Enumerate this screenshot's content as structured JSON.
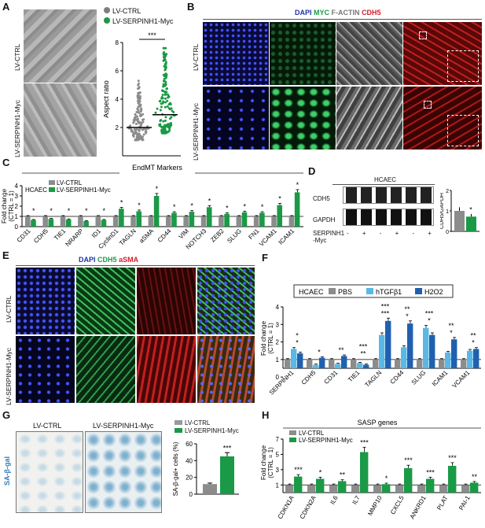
{
  "panels": {
    "A": {
      "letter": "A",
      "row_labels": [
        "LV-CTRL",
        "LV-SERPINH1-Myc"
      ],
      "legend": [
        "LV-CTRL",
        "LV-SERPINH1-Myc"
      ],
      "ylabel": "Aspect ratio",
      "yticks": [
        "2",
        "4",
        "6",
        "8"
      ],
      "sig": "***",
      "colors": {
        "ctrl": "#7f7f7f",
        "myc": "#1a9a46"
      }
    },
    "B": {
      "letter": "B",
      "channels": [
        {
          "name": "DAPI",
          "color": "#2233aa"
        },
        {
          "name": "MYC",
          "color": "#1a9a46"
        },
        {
          "name": "F-ACTIN",
          "color": "#777777"
        },
        {
          "name": "CDH5",
          "color": "#d0202a"
        }
      ],
      "row_labels": [
        "LV-CTRL",
        "LV-SERPINH1-Myc"
      ]
    },
    "C": {
      "letter": "C",
      "title": "EndMT Markers",
      "cell": "HCAEC",
      "legend": [
        "LV-CTRL",
        "LV-SERPINH1-Myc"
      ],
      "ylabel": "Fold change\n(CTRL = 1)"
    },
    "D": {
      "letter": "D",
      "cell": "HCAEC",
      "rows": [
        "CDH5",
        "GAPDH"
      ],
      "treatment": "SERPINH1\n-Myc",
      "signs": [
        "-",
        "+",
        "-",
        "+",
        "-",
        "+"
      ],
      "ylabel": "CDH5/GAPDH",
      "sig": "*"
    },
    "E": {
      "letter": "E",
      "channels": [
        {
          "name": "DAPI",
          "color": "#2233aa"
        },
        {
          "name": "CDH5",
          "color": "#1a9a46"
        },
        {
          "name": "aSMA",
          "color": "#d0202a"
        }
      ],
      "row_labels": [
        "LV-CTRL",
        "LV-SERPINH1-Myc"
      ]
    },
    "F": {
      "letter": "F",
      "cell": "HCAEC",
      "legend": [
        "PBS",
        "hTGFβ1",
        "H2O2"
      ],
      "ylabel": "Fold change\n(CTRL = 1)"
    },
    "G": {
      "letter": "G",
      "img_labels": [
        "LV-CTRL",
        "LV-SERPINH1-Myc"
      ],
      "side_label": "SA-β-gal",
      "legend": [
        "LV-CTRL",
        "LV-SERPINH1-Myc"
      ],
      "ylabel": "SA-β-gal+ cells (%)",
      "sig": "***"
    },
    "H": {
      "letter": "H",
      "title": "SASP genes",
      "legend": [
        "LV-CTRL",
        "LV-SERPINH1-Myc"
      ],
      "ylabel": "Fold change\n(CTRL = 1)"
    }
  },
  "chart_data": [
    {
      "panel": "A",
      "type": "scatter",
      "ylabel": "Aspect ratio",
      "ylim": [
        0,
        8
      ],
      "yticks": [
        2,
        4,
        6,
        8
      ],
      "categories": [
        "LV-CTRL",
        "LV-SERPINH1-Myc"
      ],
      "series": [
        {
          "name": "LV-CTRL",
          "median": 2.0
        },
        {
          "name": "LV-SERPINH1-Myc",
          "median": 2.9
        }
      ]
    },
    {
      "panel": "C",
      "type": "bar",
      "ylabel": "Fold change (CTRL = 1)",
      "ylim": [
        0,
        4
      ],
      "yticks": [
        0,
        1,
        2,
        3,
        4
      ],
      "categories": [
        "CD31",
        "CDH5",
        "TIE1",
        "NRARP",
        "ID1",
        "CyclinD1",
        "TAGLN",
        "aSMA",
        "CD44",
        "VIM",
        "NOTCH3",
        "ZEB2",
        "SLUG",
        "FN1",
        "VCAM1",
        "ICAM1"
      ],
      "series": [
        {
          "name": "LV-CTRL",
          "values": [
            1,
            1,
            1,
            1,
            1,
            1,
            1,
            1,
            1,
            1,
            1,
            1,
            1,
            1,
            1,
            1
          ]
        },
        {
          "name": "LV-SERPINH1-Myc",
          "values": [
            0.65,
            0.75,
            0.7,
            0.55,
            0.65,
            1.75,
            1.5,
            3.0,
            1.35,
            1.45,
            1.9,
            1.25,
            1.4,
            1.35,
            2.1,
            3.35
          ]
        }
      ],
      "sig": [
        "*",
        "*",
        "*",
        "*",
        "*",
        "*",
        "*",
        "*",
        "*",
        "*",
        "*",
        "*",
        "*",
        "*",
        "*",
        "*"
      ]
    },
    {
      "panel": "D",
      "type": "bar",
      "ylabel": "CDH5/GAPDH",
      "ylim": [
        0,
        2
      ],
      "yticks": [
        0,
        1,
        2
      ],
      "categories": [
        "LV-CTRL",
        "LV-SERPINH1-Myc"
      ],
      "values": [
        1.0,
        0.72
      ]
    },
    {
      "panel": "F",
      "type": "bar",
      "ylabel": "Fold change (CTRL = 1)",
      "ylim": [
        0,
        4
      ],
      "yticks": [
        0,
        1,
        2,
        3,
        4
      ],
      "categories": [
        "SERPINH1",
        "CDH5",
        "CD31",
        "TIE1",
        "TAGLN",
        "CD44",
        "SLUG",
        "ICAM1",
        "VCAM1"
      ],
      "series": [
        {
          "name": "PBS",
          "values": [
            1,
            1,
            1,
            1,
            1,
            1,
            1,
            1,
            1
          ]
        },
        {
          "name": "hTGFβ1",
          "values": [
            1.6,
            0.7,
            0.75,
            0.8,
            2.4,
            1.7,
            2.8,
            1.4,
            1.5
          ]
        },
        {
          "name": "H2O2",
          "values": [
            1.35,
            1.1,
            1.2,
            0.7,
            3.2,
            3.05,
            2.4,
            2.15,
            1.6
          ]
        }
      ],
      "sig": [
        "*\n*",
        "*",
        "**",
        "***\n**",
        "***\n***",
        "**\n*",
        "***\n*",
        "**\n*",
        "**\n*"
      ]
    },
    {
      "panel": "G",
      "type": "bar",
      "ylabel": "SA-β-gal+ cells (%)",
      "ylim": [
        0,
        60
      ],
      "yticks": [
        0,
        20,
        40,
        60
      ],
      "categories": [
        "LV-CTRL",
        "LV-SERPINH1-Myc"
      ],
      "values": [
        12,
        45
      ]
    },
    {
      "panel": "H",
      "type": "bar",
      "ylabel": "Fold change (CTRL = 1)",
      "ylim": [
        0,
        7
      ],
      "yticks": [
        1,
        3,
        5,
        7
      ],
      "categories": [
        "CDKN1A",
        "CDKN2A",
        "IL6",
        "IL7",
        "MMP10",
        "CXCL5",
        "ANKRD1",
        "PLAT",
        "PAI-1"
      ],
      "series": [
        {
          "name": "LV-CTRL",
          "values": [
            1,
            1,
            1,
            1,
            1,
            1,
            1,
            1,
            1
          ]
        },
        {
          "name": "LV-SERPINH1-Myc",
          "values": [
            2.1,
            1.8,
            1.5,
            5.3,
            1.1,
            3.2,
            1.8,
            3.5,
            1.3
          ]
        }
      ],
      "sig": [
        "***",
        "*",
        "**",
        "***",
        "*",
        "***",
        "***",
        "***",
        "**"
      ]
    }
  ]
}
